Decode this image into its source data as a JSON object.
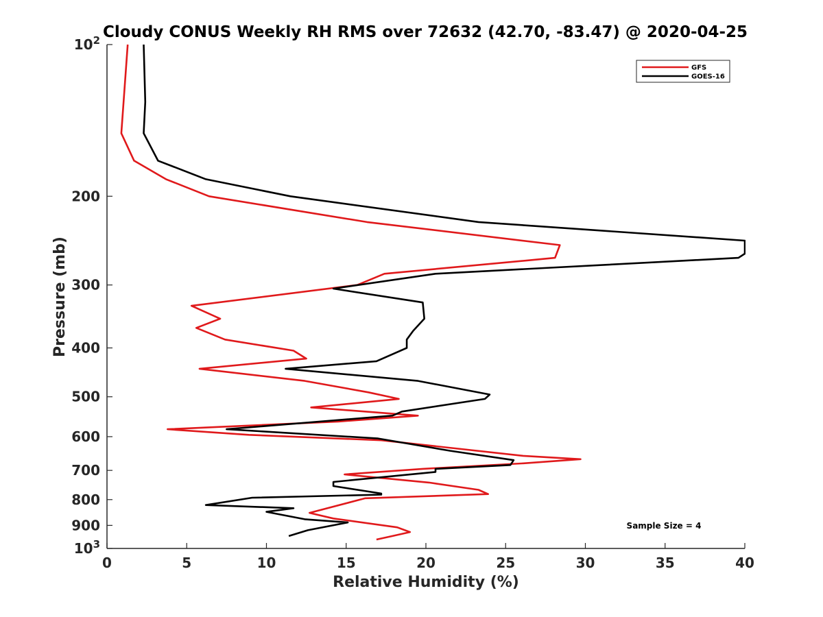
{
  "chart_data": {
    "type": "line",
    "title": "Cloudy CONUS Weekly RH RMS over 72632 (42.70, -83.47) @ 2020-04-25",
    "xlabel": "Relative Humidity (%)",
    "ylabel": "Pressure (mb)",
    "xlim": [
      0,
      40
    ],
    "ylim": [
      100,
      1000
    ],
    "y_scale": "log",
    "y_reversed": true,
    "grid": false,
    "legend_position": "top-right",
    "x_ticks": [
      0,
      5,
      10,
      15,
      20,
      25,
      30,
      35,
      40
    ],
    "x_tick_labels": [
      "0",
      "5",
      "10",
      "15",
      "20",
      "25",
      "30",
      "35",
      "40"
    ],
    "y_ticks": [
      {
        "value": 100,
        "base": "10",
        "exp": "2"
      },
      {
        "value": 200,
        "label": "200"
      },
      {
        "value": 300,
        "label": "300"
      },
      {
        "value": 400,
        "label": "400"
      },
      {
        "value": 500,
        "label": "500"
      },
      {
        "value": 600,
        "label": "600"
      },
      {
        "value": 700,
        "label": "700"
      },
      {
        "value": 800,
        "label": "800"
      },
      {
        "value": 900,
        "label": "900"
      },
      {
        "value": 1000,
        "base": "10",
        "exp": "3"
      }
    ],
    "annotation": "Sample Size = 4",
    "series": [
      {
        "name": "GFS",
        "color": "#e0191b",
        "points": [
          [
            1.3,
            100
          ],
          [
            0.9,
            150
          ],
          [
            1.7,
            170
          ],
          [
            3.7,
            185
          ],
          [
            6.4,
            200
          ],
          [
            16.3,
            225
          ],
          [
            28.4,
            250
          ],
          [
            28.1,
            265
          ],
          [
            17.4,
            285
          ],
          [
            15.7,
            300
          ],
          [
            5.3,
            330
          ],
          [
            7.1,
            350
          ],
          [
            5.6,
            365
          ],
          [
            7.4,
            385
          ],
          [
            11.7,
            405
          ],
          [
            12.5,
            420
          ],
          [
            5.8,
            440
          ],
          [
            12.4,
            465
          ],
          [
            16.4,
            490
          ],
          [
            18.3,
            505
          ],
          [
            12.8,
            525
          ],
          [
            19.5,
            545
          ],
          [
            14.5,
            560
          ],
          [
            3.8,
            580
          ],
          [
            8.9,
            595
          ],
          [
            17.2,
            610
          ],
          [
            26.1,
            655
          ],
          [
            29.7,
            665
          ],
          [
            26.0,
            678
          ],
          [
            19.8,
            695
          ],
          [
            14.9,
            713
          ],
          [
            20.2,
            740
          ],
          [
            23.3,
            765
          ],
          [
            23.9,
            780
          ],
          [
            16.2,
            795
          ],
          [
            12.7,
            850
          ],
          [
            14.2,
            872
          ],
          [
            18.2,
            908
          ],
          [
            19.0,
            928
          ],
          [
            17.9,
            945
          ],
          [
            16.9,
            960
          ]
        ]
      },
      {
        "name": "GOES-16",
        "color": "#000000",
        "points": [
          [
            2.3,
            100
          ],
          [
            2.4,
            130
          ],
          [
            2.3,
            150
          ],
          [
            3.2,
            170
          ],
          [
            6.2,
            185
          ],
          [
            11.5,
            200
          ],
          [
            23.3,
            225
          ],
          [
            40.0,
            245
          ],
          [
            40.0,
            260
          ],
          [
            39.6,
            265
          ],
          [
            20.6,
            285
          ],
          [
            14.2,
            305
          ],
          [
            19.8,
            325
          ],
          [
            19.9,
            350
          ],
          [
            19.2,
            370
          ],
          [
            18.8,
            385
          ],
          [
            18.8,
            400
          ],
          [
            16.9,
            425
          ],
          [
            11.2,
            440
          ],
          [
            19.5,
            465
          ],
          [
            24.0,
            495
          ],
          [
            23.7,
            505
          ],
          [
            18.5,
            535
          ],
          [
            17.9,
            545
          ],
          [
            7.5,
            580
          ],
          [
            17.0,
            605
          ],
          [
            21.5,
            640
          ],
          [
            25.5,
            668
          ],
          [
            25.3,
            683
          ],
          [
            20.6,
            695
          ],
          [
            20.6,
            705
          ],
          [
            14.2,
            738
          ],
          [
            14.2,
            752
          ],
          [
            17.2,
            778
          ],
          [
            17.2,
            782
          ],
          [
            9.1,
            793
          ],
          [
            6.2,
            820
          ],
          [
            11.7,
            832
          ],
          [
            10.0,
            846
          ],
          [
            12.4,
            875
          ],
          [
            15.1,
            888
          ],
          [
            12.6,
            920
          ],
          [
            11.4,
            945
          ]
        ]
      }
    ]
  }
}
